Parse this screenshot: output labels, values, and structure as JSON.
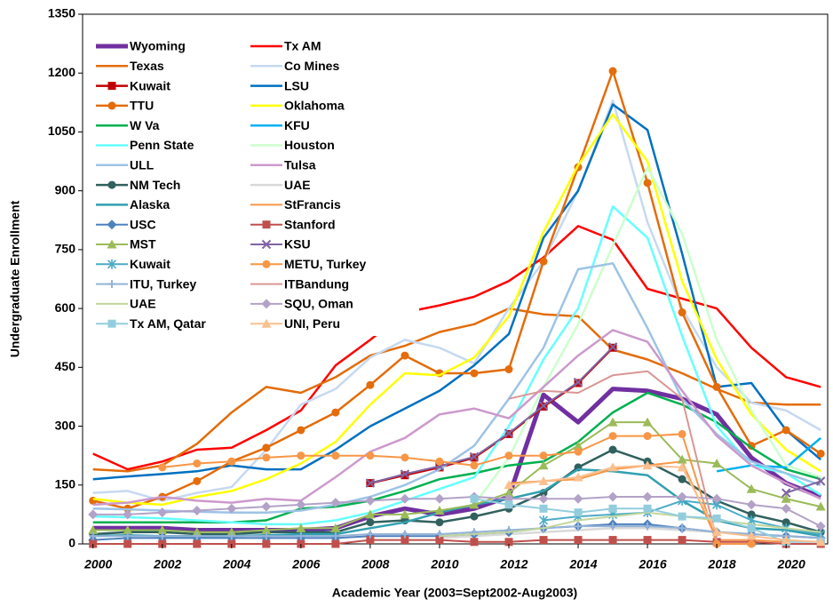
{
  "chart_data": {
    "type": "line",
    "ylabel": "Undergraduate Enrollment",
    "xlabel": "Academic Year (2003=Sept2002-Aug2003)",
    "x": [
      2000,
      2001,
      2002,
      2003,
      2004,
      2005,
      2006,
      2007,
      2008,
      2009,
      2010,
      2011,
      2012,
      2013,
      2014,
      2015,
      2016,
      2017,
      2018,
      2019,
      2020,
      2021
    ],
    "xlim": [
      1999.7,
      2021.2
    ],
    "xticks": [
      2000,
      2002,
      2004,
      2006,
      2008,
      2010,
      2012,
      2014,
      2016,
      2018,
      2020
    ],
    "ylim": [
      0,
      1350
    ],
    "yticks": [
      0,
      150,
      300,
      450,
      600,
      750,
      900,
      1050,
      1200,
      1350
    ],
    "grid": false,
    "legend": "upper left",
    "series": [
      {
        "name": "Wyoming",
        "color": "#7030a0",
        "width": 5,
        "marker": "none",
        "values": [
          40,
          40,
          40,
          35,
          35,
          35,
          35,
          40,
          70,
          90,
          75,
          90,
          120,
          380,
          310,
          395,
          390,
          370,
          330,
          220,
          155,
          120
        ]
      },
      {
        "name": "Tx AM",
        "color": "#ff0000",
        "width": 2.5,
        "marker": "none",
        "values": [
          230,
          190,
          210,
          240,
          245,
          290,
          340,
          455,
          520,
          590,
          608,
          630,
          670,
          730,
          810,
          775,
          650,
          625,
          600,
          500,
          425,
          400
        ]
      },
      {
        "name": "Texas",
        "color": "#e36c09",
        "width": 2.5,
        "marker": "none",
        "values": [
          190,
          185,
          200,
          255,
          335,
          400,
          385,
          425,
          480,
          505,
          540,
          560,
          600,
          585,
          580,
          495,
          470,
          435,
          395,
          360,
          355,
          355
        ]
      },
      {
        "name": "Co Mines",
        "color": "#c6d9f1",
        "width": 2.5,
        "marker": "none",
        "values": [
          130,
          135,
          110,
          130,
          145,
          240,
          355,
          395,
          475,
          520,
          500,
          460,
          600,
          720,
          900,
          1130,
          820,
          600,
          450,
          360,
          340,
          290
        ]
      },
      {
        "name": "Kuwait",
        "color": "#c00000",
        "width": 2.5,
        "marker": "square",
        "values": [
          null,
          null,
          null,
          null,
          null,
          null,
          null,
          null,
          155,
          175,
          195,
          220,
          280,
          350,
          410,
          500,
          null,
          null,
          null,
          null,
          null,
          null
        ]
      },
      {
        "name": "LSU",
        "color": "#0070c0",
        "width": 2.5,
        "marker": "none",
        "values": [
          165,
          172,
          178,
          185,
          200,
          190,
          190,
          240,
          300,
          345,
          390,
          455,
          535,
          780,
          900,
          1120,
          1055,
          740,
          400,
          410,
          290,
          215
        ]
      },
      {
        "name": "TTU",
        "color": "#e46c0a",
        "width": 2.5,
        "marker": "circle",
        "values": [
          110,
          90,
          120,
          160,
          210,
          245,
          290,
          335,
          405,
          480,
          435,
          435,
          445,
          720,
          960,
          1205,
          920,
          590,
          400,
          250,
          290,
          230
        ]
      },
      {
        "name": "Oklahoma",
        "color": "#ffff00",
        "width": 2.5,
        "marker": "none",
        "values": [
          115,
          105,
          100,
          120,
          135,
          165,
          205,
          260,
          355,
          435,
          430,
          475,
          580,
          795,
          965,
          1095,
          975,
          670,
          470,
          330,
          240,
          185
        ]
      },
      {
        "name": "W Va",
        "color": "#00b050",
        "width": 2.5,
        "marker": "none",
        "values": [
          55,
          55,
          55,
          55,
          55,
          60,
          90,
          95,
          110,
          135,
          165,
          180,
          200,
          210,
          260,
          335,
          385,
          355,
          310,
          245,
          190,
          165
        ]
      },
      {
        "name": "KFU",
        "color": "#00b0f0",
        "width": 2.5,
        "marker": "none",
        "values": [
          null,
          null,
          null,
          null,
          null,
          null,
          null,
          null,
          null,
          null,
          null,
          null,
          null,
          null,
          null,
          null,
          null,
          null,
          185,
          200,
          195,
          270
        ]
      },
      {
        "name": "Penn State",
        "color": "#66ffff",
        "width": 2.5,
        "marker": "none",
        "values": [
          70,
          68,
          65,
          60,
          55,
          50,
          50,
          60,
          80,
          110,
          140,
          170,
          300,
          470,
          600,
          860,
          780,
          530,
          300,
          200,
          180,
          125
        ]
      },
      {
        "name": "Houston",
        "color": "#ccffcc",
        "width": 2.5,
        "marker": "none",
        "values": [
          null,
          null,
          null,
          null,
          null,
          null,
          null,
          null,
          null,
          null,
          null,
          100,
          220,
          400,
          560,
          760,
          960,
          790,
          520,
          340,
          200,
          170
        ]
      },
      {
        "name": "ULL",
        "color": "#9dc3e6",
        "width": 2.5,
        "marker": "none",
        "values": [
          90,
          88,
          85,
          82,
          80,
          80,
          85,
          100,
          120,
          150,
          190,
          250,
          370,
          500,
          700,
          715,
          550,
          370,
          280,
          210,
          180,
          150
        ]
      },
      {
        "name": "Tulsa",
        "color": "#cc99cc",
        "width": 2.5,
        "marker": "none",
        "values": [
          100,
          105,
          120,
          110,
          105,
          115,
          110,
          170,
          235,
          270,
          330,
          345,
          320,
          400,
          480,
          545,
          515,
          390,
          275,
          200,
          155,
          115
        ]
      },
      {
        "name": "NM Tech",
        "color": "#31605e",
        "width": 2.5,
        "marker": "circle",
        "values": [
          25,
          30,
          30,
          25,
          25,
          30,
          30,
          30,
          55,
          60,
          55,
          70,
          90,
          130,
          195,
          240,
          210,
          165,
          110,
          75,
          55,
          30
        ]
      },
      {
        "name": "UAE",
        "color": "#d9d9d9",
        "width": 2.5,
        "marker": "none",
        "values": [
          null,
          null,
          null,
          null,
          null,
          null,
          null,
          null,
          null,
          null,
          15,
          20,
          25,
          30,
          35,
          40,
          40,
          35,
          30,
          25,
          20,
          15
        ]
      },
      {
        "name": "Alaska",
        "color": "#31a0b0",
        "width": 2.5,
        "marker": "none",
        "values": [
          20,
          22,
          20,
          20,
          20,
          22,
          25,
          25,
          40,
          55,
          80,
          100,
          115,
          135,
          190,
          185,
          175,
          110,
          60,
          40,
          35,
          20
        ]
      },
      {
        "name": "StFrancis",
        "color": "#f79646",
        "width": 2,
        "marker": "none",
        "values": [
          null,
          null,
          null,
          null,
          null,
          null,
          null,
          null,
          null,
          null,
          null,
          null,
          155,
          160,
          165,
          190,
          200,
          210,
          10,
          10,
          5,
          null
        ]
      },
      {
        "name": "USC",
        "color": "#4f81bd",
        "width": 2,
        "marker": "diamond",
        "values": [
          10,
          15,
          15,
          15,
          15,
          15,
          15,
          15,
          20,
          20,
          20,
          25,
          30,
          40,
          45,
          50,
          50,
          40,
          30,
          25,
          20,
          15
        ]
      },
      {
        "name": "Stanford",
        "color": "#c0504d",
        "width": 2,
        "marker": "square",
        "values": [
          0,
          0,
          0,
          0,
          0,
          0,
          0,
          0,
          10,
          10,
          10,
          5,
          5,
          10,
          10,
          10,
          10,
          10,
          5,
          5,
          0,
          0
        ]
      },
      {
        "name": "MST",
        "color": "#9bbb59",
        "width": 2,
        "marker": "triangle",
        "values": [
          35,
          35,
          35,
          30,
          30,
          35,
          40,
          40,
          75,
          75,
          85,
          100,
          130,
          200,
          250,
          310,
          310,
          215,
          205,
          140,
          115,
          95
        ]
      },
      {
        "name": "KSU",
        "color": "#8064a2",
        "width": 2,
        "marker": "x",
        "values": [
          null,
          null,
          null,
          null,
          null,
          null,
          null,
          null,
          155,
          178,
          198,
          222,
          282,
          352,
          412,
          502,
          null,
          null,
          null,
          null,
          130,
          160
        ]
      },
      {
        "name": "Kuwait",
        "color": "#4bacc6",
        "width": 2,
        "marker": "star",
        "values": [
          null,
          null,
          null,
          null,
          null,
          null,
          null,
          null,
          null,
          null,
          null,
          null,
          null,
          60,
          70,
          75,
          80,
          110,
          100,
          60,
          40,
          25
        ]
      },
      {
        "name": "METU, Turkey",
        "color": "#f79646",
        "width": 2,
        "marker": "circle",
        "values": [
          null,
          null,
          195,
          205,
          210,
          220,
          225,
          225,
          225,
          220,
          210,
          200,
          225,
          225,
          235,
          275,
          275,
          280,
          0,
          0,
          null,
          null
        ]
      },
      {
        "name": "ITU, Turkey",
        "color": "#95b3d7",
        "width": 2,
        "marker": "plus",
        "values": [
          20,
          20,
          20,
          20,
          20,
          20,
          20,
          20,
          25,
          25,
          25,
          30,
          35,
          40,
          45,
          45,
          45,
          40,
          30,
          25,
          20,
          15
        ]
      },
      {
        "name": "ITBandung",
        "color": "#d99694",
        "width": 2,
        "marker": "none",
        "values": [
          null,
          null,
          null,
          null,
          null,
          null,
          null,
          null,
          null,
          null,
          null,
          null,
          370,
          390,
          385,
          430,
          440,
          370,
          10,
          null,
          null,
          null
        ]
      },
      {
        "name": "UAE",
        "color": "#c3d69b",
        "width": 2,
        "marker": "none",
        "values": [
          null,
          null,
          null,
          null,
          null,
          null,
          null,
          null,
          null,
          null,
          20,
          25,
          30,
          40,
          60,
          70,
          80,
          70,
          60,
          50,
          40,
          30
        ]
      },
      {
        "name": "SQU, Oman",
        "color": "#b3a2c7",
        "width": 2,
        "marker": "diamond",
        "values": [
          75,
          75,
          80,
          85,
          90,
          95,
          100,
          105,
          110,
          115,
          115,
          120,
          115,
          115,
          115,
          120,
          120,
          120,
          115,
          100,
          90,
          45
        ]
      },
      {
        "name": "Tx AM, Qatar",
        "color": "#93cddd",
        "width": 2,
        "marker": "square",
        "values": [
          null,
          null,
          null,
          null,
          null,
          null,
          null,
          null,
          null,
          null,
          null,
          115,
          100,
          90,
          80,
          90,
          90,
          70,
          65,
          40,
          5,
          5
        ]
      },
      {
        "name": "UNI, Peru",
        "color": "#fac090",
        "width": 2,
        "marker": "triangle",
        "values": [
          null,
          null,
          null,
          null,
          null,
          null,
          null,
          null,
          null,
          null,
          null,
          null,
          150,
          160,
          170,
          195,
          200,
          195,
          30,
          20,
          10,
          5
        ]
      }
    ]
  }
}
